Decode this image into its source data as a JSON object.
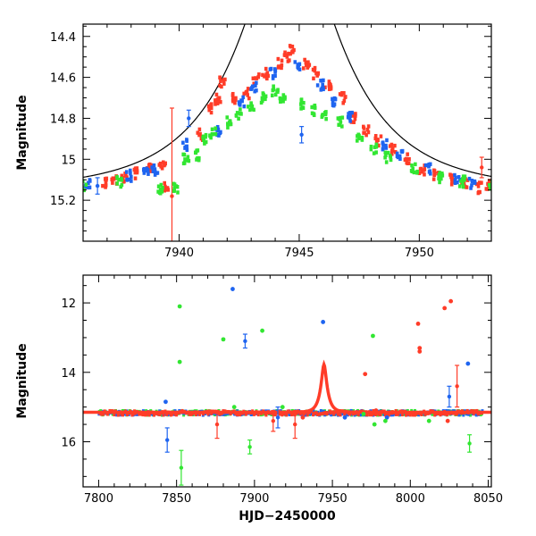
{
  "chart_data": [
    {
      "type": "scatter",
      "panel": "top",
      "title": "",
      "xlabel": "",
      "ylabel": "Magnitude",
      "xlim": [
        7936,
        7953
      ],
      "ylim": [
        15.4,
        14.34
      ],
      "y_inverted": true,
      "xticks": [
        7940,
        7945,
        7950
      ],
      "xtick_labels": [
        "7940",
        "7945",
        "7950"
      ],
      "yticks": [
        14.4,
        14.6,
        14.8,
        15.0,
        15.2
      ],
      "ytick_labels": [
        "14.4",
        "14.6",
        "14.8",
        "15",
        "15.2"
      ],
      "model_curve": {
        "t0": 7944.6,
        "u0": 0.29,
        "tE": 4.3,
        "baseline": 15.15,
        "color": "#000000"
      },
      "series": [
        {
          "color": "#ff3c28",
          "points": [
            {
              "x": 7936.9,
              "y": 15.11
            },
            {
              "x": 7937.3,
              "y": 15.1
            },
            {
              "x": 7937.7,
              "y": 15.09
            },
            {
              "x": 7938.2,
              "y": 15.07
            },
            {
              "x": 7938.8,
              "y": 15.04
            },
            {
              "x": 7939.3,
              "y": 15.02
            },
            {
              "x": 7939.5,
              "y": 15.13
            },
            {
              "x": 7939.7,
              "y": 15.18,
              "err": 0.43
            },
            {
              "x": 7940.9,
              "y": 14.88
            },
            {
              "x": 7941.3,
              "y": 14.75
            },
            {
              "x": 7941.6,
              "y": 14.71
            },
            {
              "x": 7941.8,
              "y": 14.62
            },
            {
              "x": 7942.3,
              "y": 14.7
            },
            {
              "x": 7942.8,
              "y": 14.68
            },
            {
              "x": 7943.2,
              "y": 14.61
            },
            {
              "x": 7943.6,
              "y": 14.58
            },
            {
              "x": 7944.2,
              "y": 14.53
            },
            {
              "x": 7944.5,
              "y": 14.5
            },
            {
              "x": 7944.7,
              "y": 14.47
            },
            {
              "x": 7945.3,
              "y": 14.53
            },
            {
              "x": 7945.7,
              "y": 14.58
            },
            {
              "x": 7946.2,
              "y": 14.64
            },
            {
              "x": 7946.8,
              "y": 14.7
            },
            {
              "x": 7947.3,
              "y": 14.8
            },
            {
              "x": 7947.8,
              "y": 14.86
            },
            {
              "x": 7948.3,
              "y": 14.91
            },
            {
              "x": 7948.9,
              "y": 14.95
            },
            {
              "x": 7949.5,
              "y": 15.0
            },
            {
              "x": 7950.1,
              "y": 15.05
            },
            {
              "x": 7950.7,
              "y": 15.08
            },
            {
              "x": 7951.3,
              "y": 15.1
            },
            {
              "x": 7951.9,
              "y": 15.12
            },
            {
              "x": 7952.5,
              "y": 15.14
            },
            {
              "x": 7952.6,
              "y": 15.04,
              "err": 0.05
            },
            {
              "x": 7952.9,
              "y": 15.13
            }
          ]
        },
        {
          "color": "#1e64f0",
          "points": [
            {
              "x": 7936.2,
              "y": 15.12
            },
            {
              "x": 7936.6,
              "y": 15.13,
              "err": 0.04
            },
            {
              "x": 7937.9,
              "y": 15.08
            },
            {
              "x": 7938.6,
              "y": 15.06
            },
            {
              "x": 7939.0,
              "y": 15.05
            },
            {
              "x": 7940.2,
              "y": 14.93
            },
            {
              "x": 7940.4,
              "y": 14.8,
              "err": 0.04
            },
            {
              "x": 7941.6,
              "y": 14.86
            },
            {
              "x": 7942.6,
              "y": 14.72
            },
            {
              "x": 7943.1,
              "y": 14.65
            },
            {
              "x": 7943.9,
              "y": 14.58
            },
            {
              "x": 7944.9,
              "y": 14.55
            },
            {
              "x": 7945.1,
              "y": 14.88,
              "err": 0.04
            },
            {
              "x": 7945.9,
              "y": 14.64
            },
            {
              "x": 7946.5,
              "y": 14.72
            },
            {
              "x": 7947.1,
              "y": 14.79
            },
            {
              "x": 7948.6,
              "y": 14.93
            },
            {
              "x": 7949.2,
              "y": 14.98
            },
            {
              "x": 7950.4,
              "y": 15.05
            },
            {
              "x": 7951.6,
              "y": 15.1
            },
            {
              "x": 7952.2,
              "y": 15.12
            }
          ]
        },
        {
          "color": "#32e632",
          "points": [
            {
              "x": 7936.0,
              "y": 15.13
            },
            {
              "x": 7937.5,
              "y": 15.11
            },
            {
              "x": 7939.2,
              "y": 15.15
            },
            {
              "x": 7939.9,
              "y": 15.14
            },
            {
              "x": 7940.3,
              "y": 15.0
            },
            {
              "x": 7940.7,
              "y": 14.98
            },
            {
              "x": 7941.0,
              "y": 14.9
            },
            {
              "x": 7941.4,
              "y": 14.87
            },
            {
              "x": 7942.1,
              "y": 14.82
            },
            {
              "x": 7942.5,
              "y": 14.78
            },
            {
              "x": 7943.0,
              "y": 14.74
            },
            {
              "x": 7943.5,
              "y": 14.7
            },
            {
              "x": 7944.0,
              "y": 14.67
            },
            {
              "x": 7944.3,
              "y": 14.7
            },
            {
              "x": 7945.2,
              "y": 14.73
            },
            {
              "x": 7945.6,
              "y": 14.76
            },
            {
              "x": 7946.0,
              "y": 14.78
            },
            {
              "x": 7946.7,
              "y": 14.82
            },
            {
              "x": 7947.5,
              "y": 14.89
            },
            {
              "x": 7948.1,
              "y": 14.95
            },
            {
              "x": 7948.7,
              "y": 14.99
            },
            {
              "x": 7949.8,
              "y": 15.05
            },
            {
              "x": 7950.9,
              "y": 15.09
            },
            {
              "x": 7951.8,
              "y": 15.11
            },
            {
              "x": 7953.0,
              "y": 15.13
            }
          ]
        }
      ]
    },
    {
      "type": "scatter",
      "panel": "bottom",
      "title": "",
      "xlabel": "HJD−2450000",
      "ylabel": "Magnitude",
      "xlim": [
        7790,
        8052
      ],
      "ylim": [
        17.3,
        11.2
      ],
      "y_inverted": true,
      "xticks": [
        7800,
        7850,
        7900,
        7950,
        8000,
        8050
      ],
      "xtick_labels": [
        "7800",
        "7850",
        "7900",
        "7950",
        "8000",
        "8050"
      ],
      "yticks": [
        12,
        14,
        16
      ],
      "ytick_labels": [
        "12",
        "14",
        "16"
      ],
      "model_curve": {
        "t0": 7944.6,
        "u0": 0.29,
        "tE": 4.3,
        "baseline": 15.15,
        "color": "#ff3c28"
      },
      "baseline_band": {
        "x_start": 7800,
        "x_end": 8046,
        "mag": 15.17,
        "scatter": 0.06
      },
      "series": [
        {
          "color": "#ff3c28",
          "points": [
            {
              "x": 7876,
              "y": 15.5,
              "err": 0.4
            },
            {
              "x": 7912,
              "y": 15.4,
              "err": 0.3
            },
            {
              "x": 7926,
              "y": 15.5,
              "err": 0.4
            },
            {
              "x": 7931,
              "y": 15.3
            },
            {
              "x": 7971,
              "y": 14.05
            },
            {
              "x": 7978,
              "y": 15.1
            },
            {
              "x": 8005,
              "y": 12.6
            },
            {
              "x": 8006,
              "y": 13.3
            },
            {
              "x": 8006,
              "y": 13.4
            },
            {
              "x": 8022,
              "y": 12.15
            },
            {
              "x": 8026,
              "y": 11.95
            },
            {
              "x": 8030,
              "y": 14.4,
              "err": 0.6
            },
            {
              "x": 8024,
              "y": 15.4
            }
          ]
        },
        {
          "color": "#1e64f0",
          "points": [
            {
              "x": 7843,
              "y": 14.85
            },
            {
              "x": 7844,
              "y": 15.95,
              "err": 0.35
            },
            {
              "x": 7886,
              "y": 11.6
            },
            {
              "x": 7894,
              "y": 13.1,
              "err": 0.2
            },
            {
              "x": 7915,
              "y": 15.3,
              "err": 0.3
            },
            {
              "x": 7944,
              "y": 12.55
            },
            {
              "x": 7958,
              "y": 15.3
            },
            {
              "x": 7985,
              "y": 15.3
            },
            {
              "x": 8025,
              "y": 14.7,
              "err": 0.3
            },
            {
              "x": 8037,
              "y": 13.75
            }
          ]
        },
        {
          "color": "#32e632",
          "points": [
            {
              "x": 7852,
              "y": 12.1
            },
            {
              "x": 7852,
              "y": 13.7
            },
            {
              "x": 7853,
              "y": 16.75,
              "err": 0.5
            },
            {
              "x": 7880,
              "y": 13.05
            },
            {
              "x": 7887,
              "y": 15.0
            },
            {
              "x": 7897,
              "y": 16.15,
              "err": 0.2
            },
            {
              "x": 7905,
              "y": 12.8
            },
            {
              "x": 7918,
              "y": 15.0
            },
            {
              "x": 7970,
              "y": 15.2
            },
            {
              "x": 7976,
              "y": 12.95
            },
            {
              "x": 7977,
              "y": 15.5
            },
            {
              "x": 7984,
              "y": 15.4
            },
            {
              "x": 8012,
              "y": 15.4
            },
            {
              "x": 8038,
              "y": 16.05,
              "err": 0.25
            }
          ]
        }
      ]
    }
  ]
}
